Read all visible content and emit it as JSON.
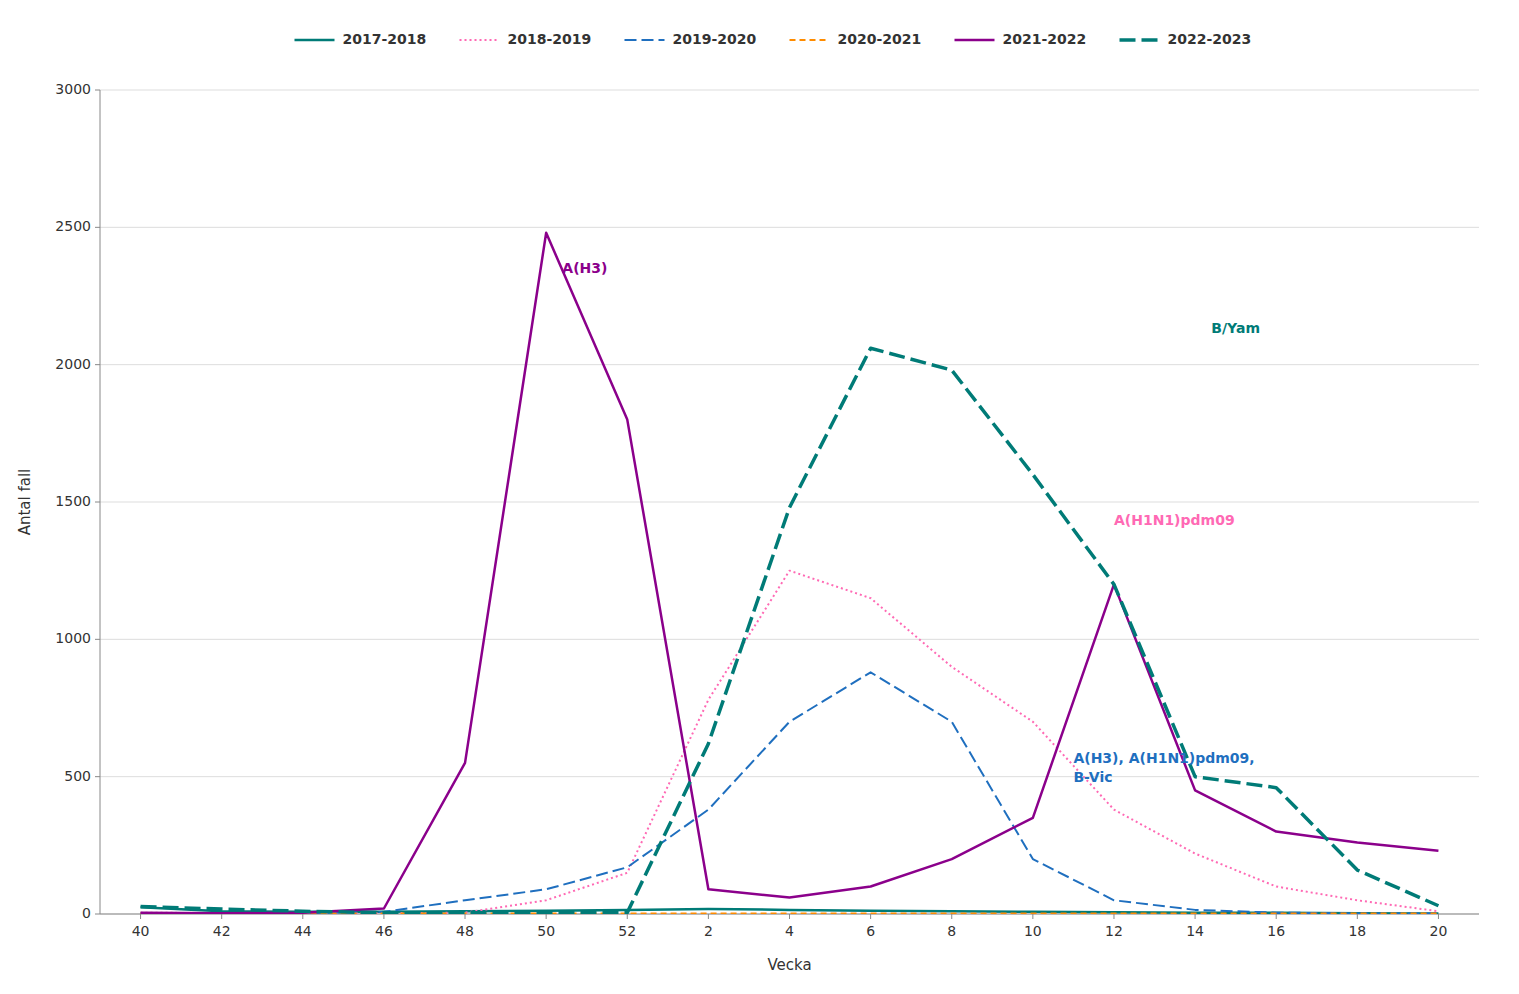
{
  "chart_data": {
    "type": "line",
    "xlabel": "Vecka",
    "ylabel": "Antal fall",
    "ylim": [
      0,
      3000
    ],
    "yticks": [
      0,
      500,
      1000,
      1500,
      2000,
      2500,
      3000
    ],
    "grid": true,
    "legend": "top",
    "categories": [
      "40",
      "42",
      "44",
      "46",
      "48",
      "50",
      "52",
      "2",
      "4",
      "6",
      "8",
      "10",
      "12",
      "14",
      "16",
      "18",
      "20"
    ],
    "series": [
      {
        "name": "2017-2018",
        "color": "#007B77",
        "line_style": "solid",
        "values": [
          25,
          10,
          8,
          8,
          10,
          12,
          15,
          18,
          15,
          12,
          10,
          8,
          6,
          5,
          5,
          3,
          2
        ]
      },
      {
        "name": "2018-2019",
        "color": "#FF69B4",
        "line_style": "dotted",
        "values": [
          5,
          3,
          3,
          3,
          5,
          50,
          150,
          780,
          1250,
          1150,
          900,
          700,
          380,
          220,
          100,
          50,
          10
        ]
      },
      {
        "name": "2019-2020",
        "color": "#1F6FBF",
        "line_style": "dashed_long",
        "values": [
          3,
          3,
          3,
          8,
          50,
          90,
          170,
          380,
          700,
          880,
          700,
          200,
          50,
          15,
          5,
          2,
          2
        ]
      },
      {
        "name": "2020-2021",
        "color": "#FF8C00",
        "line_style": "dashed_short",
        "values": [
          2,
          2,
          2,
          2,
          2,
          2,
          2,
          2,
          2,
          2,
          2,
          2,
          2,
          2,
          2,
          2,
          2
        ]
      },
      {
        "name": "2021-2022",
        "color": "#8B008B",
        "line_style": "solid",
        "values": [
          5,
          3,
          5,
          20,
          550,
          2480,
          1800,
          90,
          60,
          100,
          200,
          350,
          1200,
          450,
          300,
          260,
          230
        ]
      },
      {
        "name": "2022-2023",
        "color": "#007B77",
        "line_style": "dashed_bold",
        "values": [
          27,
          18,
          10,
          5,
          5,
          5,
          5,
          620,
          1480,
          2060,
          1980,
          1600,
          1200,
          500,
          460,
          160,
          30
        ]
      }
    ],
    "annotations": [
      {
        "text": "A(H3)",
        "x": 5.2,
        "y": 2350,
        "color": "#8B008B"
      },
      {
        "text": "B/Yam",
        "x": 13.2,
        "y": 2130,
        "color": "#007B77"
      },
      {
        "text": "A(H1N1)pdm09",
        "x": 12.0,
        "y": 1430,
        "color": "#FF69B4"
      },
      {
        "text": "A(H3), A(H1N1)pdm09,\nB-Vic",
        "x": 11.5,
        "y": 530,
        "color": "#1F6FBF"
      }
    ]
  }
}
